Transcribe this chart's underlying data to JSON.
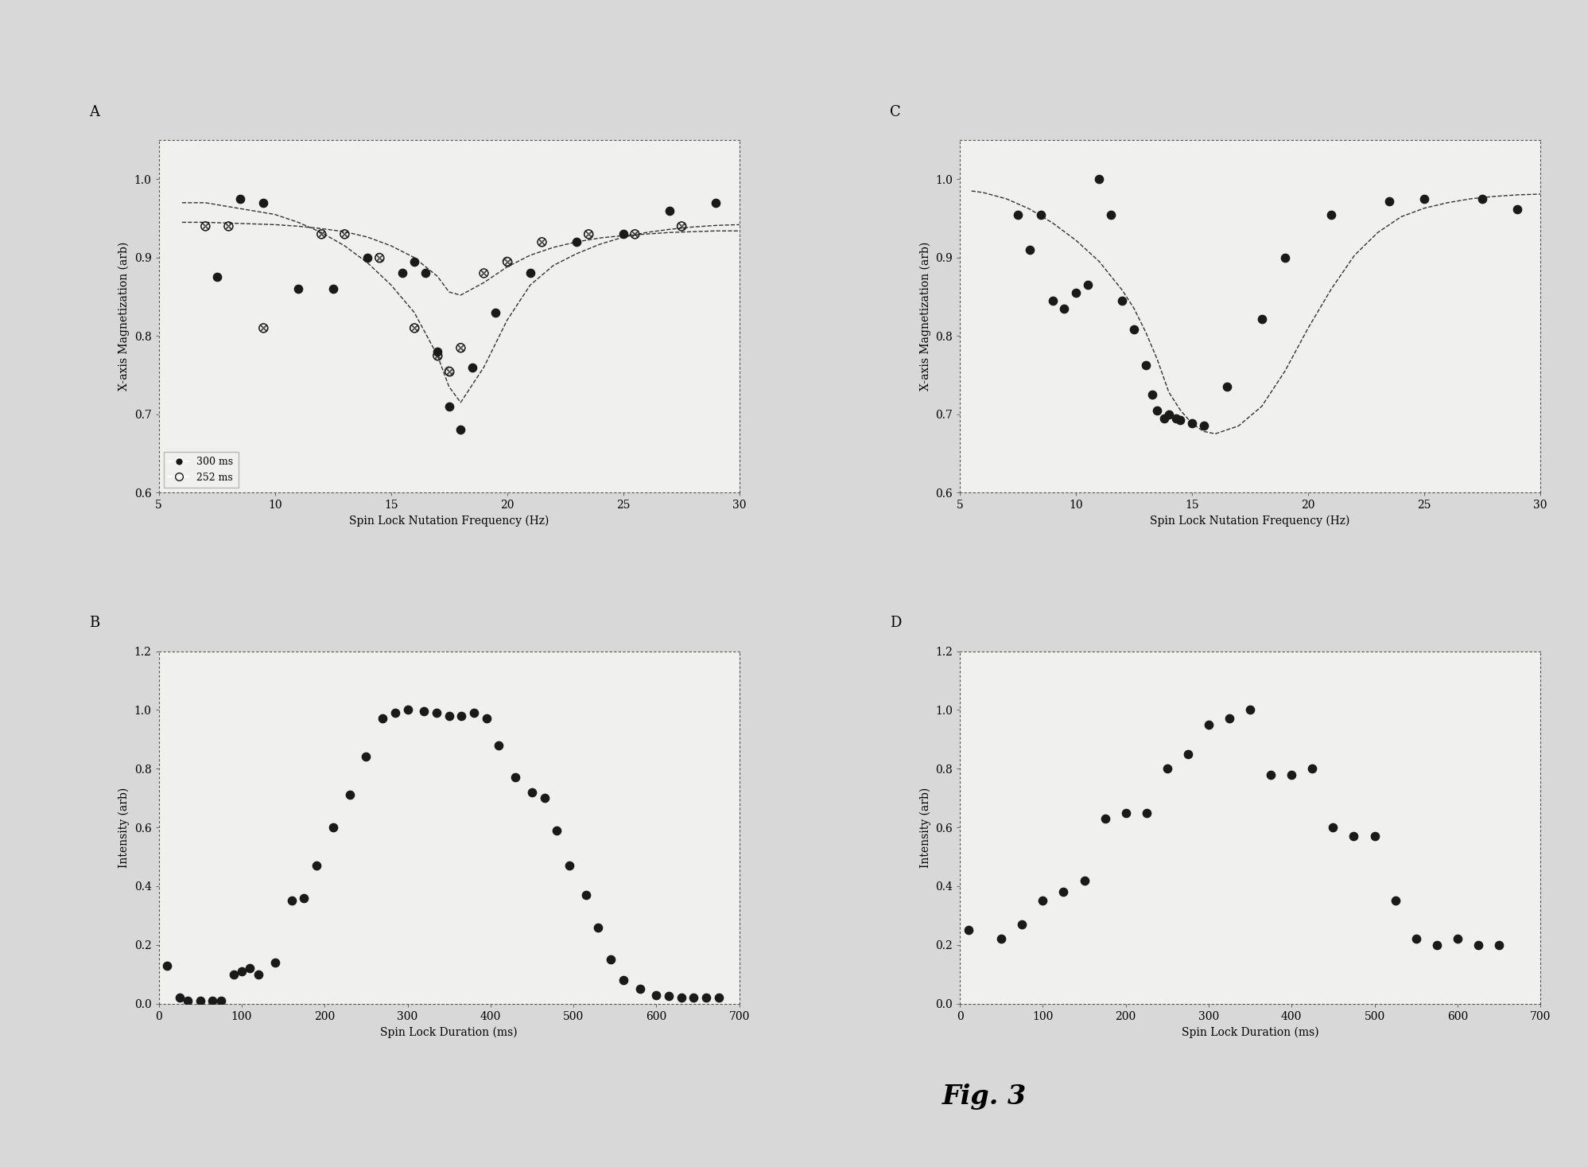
{
  "fig_label": "Fig. 3",
  "bg_color": "#ffffff",
  "outer_bg": "#e8e8e8",
  "panel_A": {
    "label": "A",
    "xlabel": "Spin Lock Nutation Frequency (Hz)",
    "ylabel": "X-axis Magnetization (arb)",
    "xlim": [
      5,
      30
    ],
    "ylim": [
      0.6,
      1.05
    ],
    "xticks": [
      5,
      10,
      15,
      20,
      25,
      30
    ],
    "yticks": [
      0.6,
      0.7,
      0.8,
      0.9,
      1.0
    ],
    "series1_label": "300 ms",
    "series1_x": [
      7.5,
      8.5,
      9.5,
      11.0,
      12.5,
      14.0,
      15.5,
      16.0,
      16.5,
      17.0,
      17.5,
      18.0,
      18.5,
      19.5,
      21.0,
      23.0,
      25.0,
      27.0,
      29.0
    ],
    "series1_y": [
      0.875,
      0.975,
      0.97,
      0.86,
      0.86,
      0.9,
      0.88,
      0.895,
      0.88,
      0.78,
      0.71,
      0.68,
      0.76,
      0.83,
      0.88,
      0.92,
      0.93,
      0.96,
      0.97
    ],
    "series2_label": "252 ms",
    "series2_x": [
      7.0,
      8.0,
      9.5,
      12.0,
      13.0,
      14.5,
      16.0,
      17.0,
      17.5,
      18.0,
      19.0,
      20.0,
      21.5,
      23.5,
      25.5,
      27.5
    ],
    "series2_y": [
      0.94,
      0.94,
      0.81,
      0.93,
      0.93,
      0.9,
      0.81,
      0.775,
      0.755,
      0.785,
      0.88,
      0.895,
      0.92,
      0.93,
      0.93,
      0.94
    ],
    "fit1_x": [
      6.0,
      7.0,
      8.0,
      9.0,
      10.0,
      11.0,
      12.0,
      13.0,
      14.0,
      15.0,
      16.0,
      17.0,
      17.5,
      18.0,
      19.0,
      20.0,
      21.0,
      22.0,
      23.0,
      24.0,
      25.0,
      26.0,
      27.0,
      28.0,
      29.0,
      30.0
    ],
    "fit1_y": [
      0.97,
      0.97,
      0.965,
      0.96,
      0.955,
      0.945,
      0.932,
      0.915,
      0.893,
      0.865,
      0.83,
      0.775,
      0.735,
      0.715,
      0.76,
      0.82,
      0.865,
      0.89,
      0.905,
      0.917,
      0.926,
      0.932,
      0.936,
      0.939,
      0.941,
      0.942
    ],
    "fit2_x": [
      6.0,
      7.0,
      8.0,
      9.0,
      10.0,
      11.0,
      12.0,
      13.0,
      14.0,
      15.0,
      16.0,
      17.0,
      17.5,
      18.0,
      19.0,
      20.0,
      21.0,
      22.0,
      23.0,
      24.0,
      25.0,
      26.0,
      27.0,
      28.0,
      29.0,
      30.0
    ],
    "fit2_y": [
      0.945,
      0.945,
      0.944,
      0.943,
      0.942,
      0.94,
      0.937,
      0.933,
      0.926,
      0.915,
      0.9,
      0.876,
      0.856,
      0.852,
      0.868,
      0.888,
      0.903,
      0.913,
      0.92,
      0.925,
      0.928,
      0.93,
      0.932,
      0.933,
      0.934,
      0.934
    ]
  },
  "panel_B": {
    "label": "B",
    "xlabel": "Spin Lock Duration (ms)",
    "ylabel": "Intensity (arb)",
    "xlim": [
      0,
      700
    ],
    "ylim": [
      0,
      1.2
    ],
    "xticks": [
      0,
      100,
      200,
      300,
      400,
      500,
      600,
      700
    ],
    "yticks": [
      0,
      0.2,
      0.4,
      0.6,
      0.8,
      1.0,
      1.2
    ],
    "x": [
      10,
      25,
      35,
      50,
      65,
      75,
      90,
      100,
      110,
      120,
      140,
      160,
      175,
      190,
      210,
      230,
      250,
      270,
      285,
      300,
      320,
      335,
      350,
      365,
      380,
      395,
      410,
      430,
      450,
      465,
      480,
      495,
      515,
      530,
      545,
      560,
      580,
      600,
      615,
      630,
      645,
      660,
      675
    ],
    "y": [
      0.13,
      0.02,
      0.01,
      0.01,
      0.01,
      0.01,
      0.1,
      0.11,
      0.12,
      0.1,
      0.14,
      0.35,
      0.36,
      0.47,
      0.6,
      0.71,
      0.84,
      0.97,
      0.99,
      1.0,
      0.995,
      0.99,
      0.98,
      0.98,
      0.99,
      0.97,
      0.88,
      0.77,
      0.72,
      0.7,
      0.59,
      0.47,
      0.37,
      0.26,
      0.15,
      0.08,
      0.05,
      0.03,
      0.025,
      0.02,
      0.02,
      0.02,
      0.02
    ]
  },
  "panel_C": {
    "label": "C",
    "xlabel": "Spin Lock Nutation Frequency (Hz)",
    "ylabel": "X-axis Magnetization (arb)",
    "xlim": [
      5,
      30
    ],
    "ylim": [
      0.6,
      1.05
    ],
    "xticks": [
      5,
      10,
      15,
      20,
      25,
      30
    ],
    "yticks": [
      0.6,
      0.7,
      0.8,
      0.9,
      1.0
    ],
    "x": [
      7.5,
      8.0,
      8.5,
      9.0,
      9.5,
      10.0,
      10.5,
      11.0,
      11.5,
      12.0,
      12.5,
      13.0,
      13.3,
      13.5,
      13.8,
      14.0,
      14.3,
      14.5,
      15.0,
      15.5,
      16.5,
      18.0,
      19.0,
      21.0,
      23.5,
      25.0,
      27.5,
      29.0
    ],
    "y": [
      0.955,
      0.91,
      0.955,
      0.845,
      0.835,
      0.855,
      0.865,
      1.0,
      0.955,
      0.845,
      0.808,
      0.763,
      0.725,
      0.705,
      0.695,
      0.7,
      0.695,
      0.693,
      0.688,
      0.685,
      0.735,
      0.822,
      0.9,
      0.955,
      0.972,
      0.975,
      0.975,
      0.962
    ],
    "fit_x": [
      5.5,
      6.0,
      7.0,
      8.0,
      9.0,
      10.0,
      11.0,
      12.0,
      12.5,
      13.0,
      13.5,
      14.0,
      14.5,
      15.0,
      15.5,
      16.0,
      17.0,
      18.0,
      19.0,
      20.0,
      21.0,
      22.0,
      23.0,
      24.0,
      25.0,
      26.0,
      27.0,
      28.0,
      29.0,
      30.0
    ],
    "fit_y": [
      0.985,
      0.983,
      0.975,
      0.962,
      0.944,
      0.922,
      0.895,
      0.858,
      0.835,
      0.805,
      0.77,
      0.728,
      0.705,
      0.688,
      0.678,
      0.675,
      0.685,
      0.71,
      0.755,
      0.81,
      0.86,
      0.903,
      0.932,
      0.952,
      0.963,
      0.97,
      0.975,
      0.978,
      0.98,
      0.981
    ]
  },
  "panel_D": {
    "label": "D",
    "xlabel": "Spin Lock Duration (ms)",
    "ylabel": "Intensity (arb)",
    "xlim": [
      0,
      700
    ],
    "ylim": [
      0,
      1.2
    ],
    "xticks": [
      0,
      100,
      200,
      300,
      400,
      500,
      600,
      700
    ],
    "yticks": [
      0,
      0.2,
      0.4,
      0.6,
      0.8,
      1.0,
      1.2
    ],
    "x": [
      10,
      50,
      75,
      100,
      125,
      150,
      175,
      200,
      225,
      250,
      275,
      300,
      325,
      350,
      375,
      400,
      425,
      450,
      475,
      500,
      525,
      550,
      575,
      600,
      625,
      650
    ],
    "y": [
      0.25,
      0.22,
      0.27,
      0.35,
      0.38,
      0.42,
      0.63,
      0.65,
      0.65,
      0.8,
      0.85,
      0.95,
      0.97,
      1.0,
      0.78,
      0.78,
      0.8,
      0.6,
      0.57,
      0.57,
      0.35,
      0.22,
      0.2,
      0.22,
      0.2,
      0.2
    ]
  },
  "marker_color": "#1a1a1a",
  "hatch_color": "#1a1a1a",
  "line_color": "#333333",
  "marker_size": 55,
  "line_width": 1.0,
  "font_size_label": 10,
  "font_size_panel": 13,
  "font_size_legend": 9,
  "font_size_title": 24
}
